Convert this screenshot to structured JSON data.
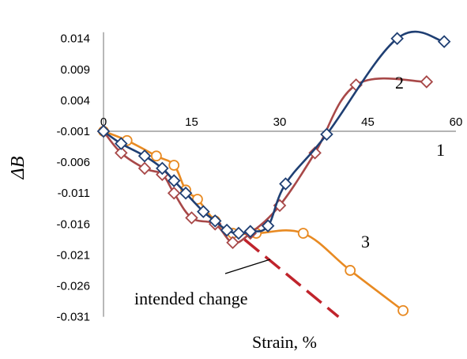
{
  "chart_data": {
    "type": "line",
    "title": "",
    "xlabel": "Strain, %",
    "ylabel": "ΔB",
    "xlim": [
      0,
      60
    ],
    "ylim": [
      -0.031,
      0.016
    ],
    "x_ticks": [
      0,
      15,
      30,
      45,
      60
    ],
    "x_tick_labels": [
      "0",
      "15",
      "30",
      "45",
      "60"
    ],
    "y_ticks": [
      0.014,
      0.009,
      0.004,
      -0.001,
      -0.006,
      -0.011,
      -0.016,
      -0.021,
      -0.026,
      -0.031
    ],
    "y_tick_labels": [
      "0.014",
      "0.009",
      "0.004",
      "-0.001",
      "-0.006",
      "-0.011",
      "-0.016",
      "-0.021",
      "-0.026",
      "-0.031"
    ],
    "grid": false,
    "series": [
      {
        "name": "1",
        "color": "#1f3f73",
        "marker": "diamond",
        "x": [
          0,
          3,
          7,
          10,
          12,
          14,
          17,
          19,
          21,
          23,
          25,
          28,
          31,
          38,
          50,
          58
        ],
        "y": [
          -0.001,
          -0.003,
          -0.005,
          -0.007,
          -0.009,
          -0.011,
          -0.014,
          -0.0155,
          -0.017,
          -0.0175,
          -0.0172,
          -0.0163,
          -0.0095,
          -0.0015,
          0.014,
          0.0135
        ]
      },
      {
        "name": "2",
        "color": "#a84848",
        "marker": "diamond",
        "x": [
          0,
          3,
          7,
          10,
          12,
          15,
          19,
          22,
          25,
          30,
          36,
          43,
          55
        ],
        "y": [
          -0.001,
          -0.0045,
          -0.007,
          -0.008,
          -0.011,
          -0.015,
          -0.016,
          -0.019,
          -0.0175,
          -0.013,
          -0.0045,
          0.0065,
          0.007
        ]
      },
      {
        "name": "3",
        "color": "#e88a22",
        "marker": "circle",
        "x": [
          0,
          4,
          9,
          12,
          14,
          16,
          19,
          22,
          26,
          34,
          42,
          51
        ],
        "y": [
          -0.001,
          -0.0025,
          -0.005,
          -0.0065,
          -0.0105,
          -0.012,
          -0.0155,
          -0.0175,
          -0.0175,
          -0.0175,
          -0.0235,
          -0.03
        ]
      }
    ],
    "extrapolation": {
      "color": "#c0242c",
      "x": [
        24,
        40
      ],
      "y": [
        -0.0185,
        -0.031
      ]
    },
    "annotations": {
      "intended_change": "intended change"
    }
  }
}
